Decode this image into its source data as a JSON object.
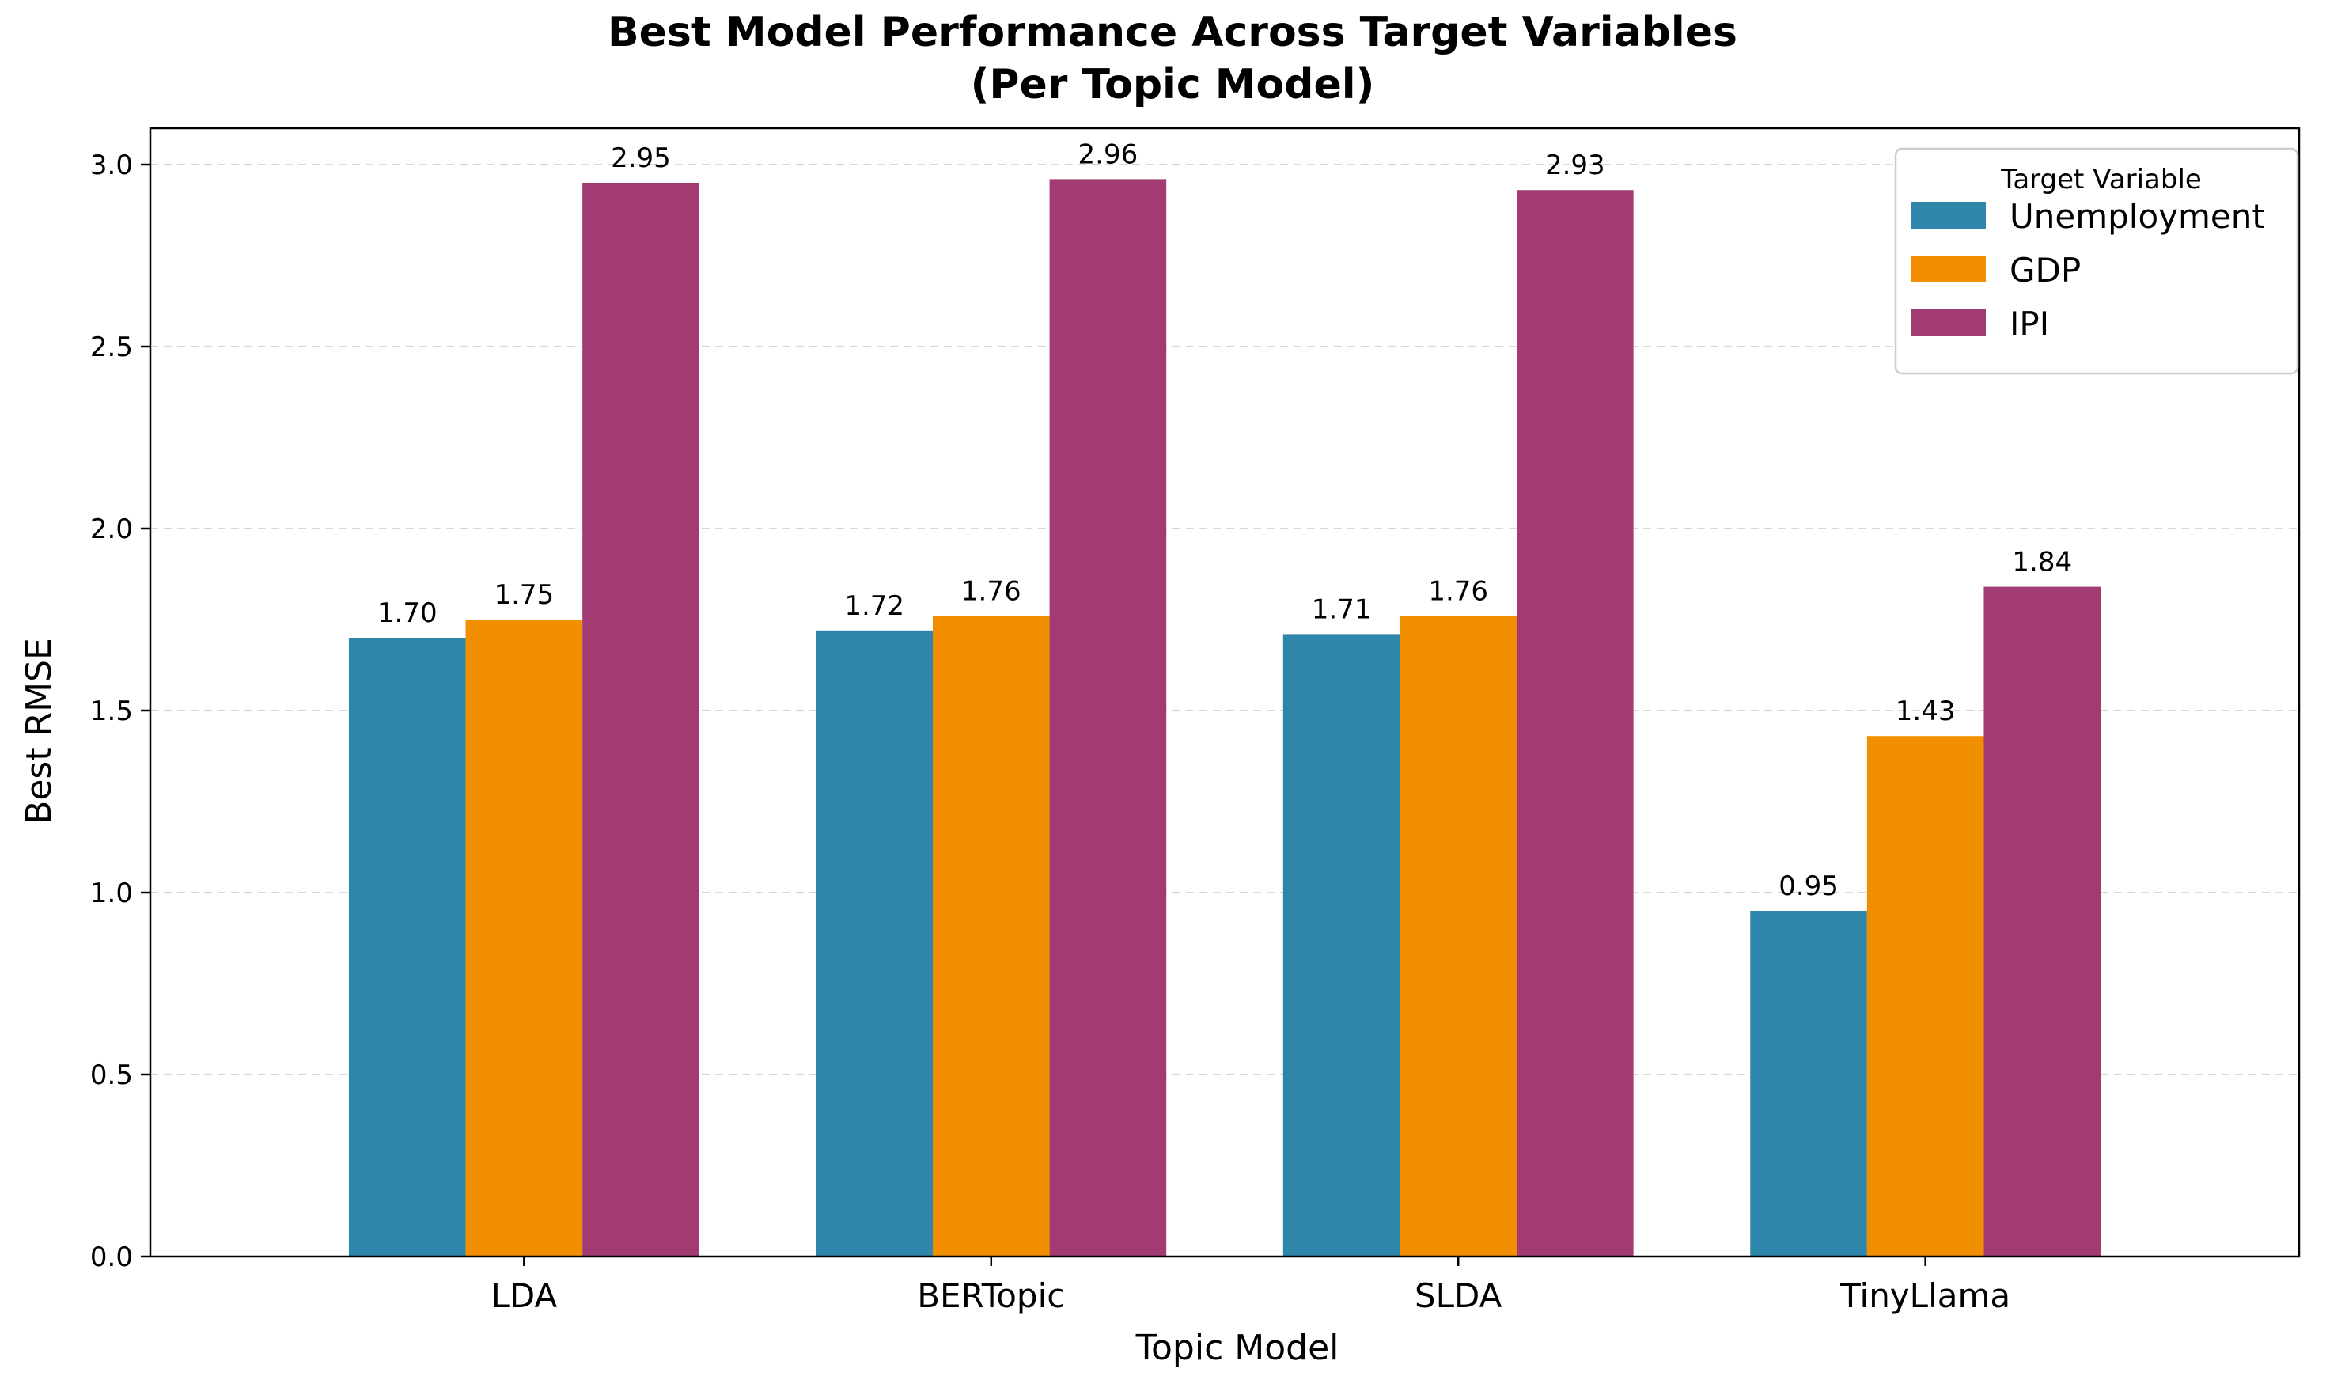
{
  "chart_data": {
    "type": "bar",
    "title": "Best Model Performance Across Target Variables",
    "subtitle": "(Per Topic Model)",
    "xlabel": "Topic Model",
    "ylabel": "Best RMSE",
    "categories": [
      "LDA",
      "BERTopic",
      "SLDA",
      "TinyLlama"
    ],
    "series": [
      {
        "name": "Unemployment",
        "color": "#2e86ab",
        "values": [
          1.7,
          1.72,
          1.71,
          0.95
        ],
        "labels": [
          "1.70",
          "1.72",
          "1.71",
          "0.95"
        ]
      },
      {
        "name": "GDP",
        "color": "#f18f01",
        "values": [
          1.75,
          1.76,
          1.76,
          1.43
        ],
        "labels": [
          "1.75",
          "1.76",
          "1.76",
          "1.43"
        ]
      },
      {
        "name": "IPI",
        "color": "#a23b72",
        "values": [
          2.95,
          2.96,
          2.93,
          1.84
        ],
        "labels": [
          "2.95",
          "2.96",
          "2.93",
          "1.84"
        ]
      }
    ],
    "ylim": [
      0,
      3.1
    ],
    "yticks": [
      "0.0",
      "0.5",
      "1.0",
      "1.5",
      "2.0",
      "2.5",
      "3.0"
    ],
    "grid": "y-dashed",
    "legend": {
      "title": "Target Variable",
      "placement": "top-right"
    }
  }
}
